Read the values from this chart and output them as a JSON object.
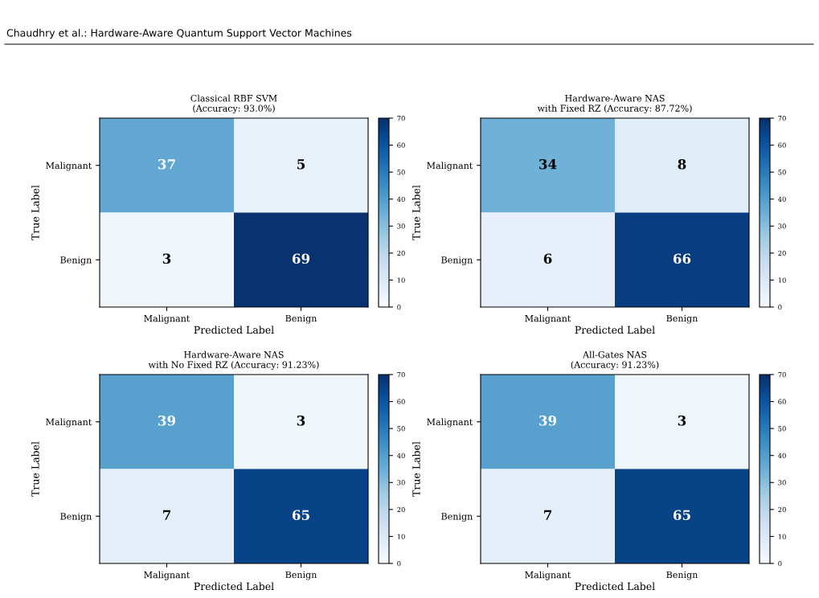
{
  "chart_data": [
    {
      "type": "heatmap",
      "title": "Classical RBF SVM\n(Accuracy: 93.0%)",
      "xlabel": "Predicted Label",
      "ylabel": "True Label",
      "categories": [
        "Malignant",
        "Benign"
      ],
      "y_categories": [
        "Malignant",
        "Benign"
      ],
      "cells": [
        [
          37,
          5
        ],
        [
          3,
          69
        ]
      ],
      "data_labels": true,
      "clim": [
        0,
        70
      ],
      "cticks": [
        0,
        10,
        20,
        30,
        40,
        50,
        60,
        70
      ],
      "annotations": [
        "Chaudhry et al.: Hardware-Aware Quantum Support Vector Machines"
      ]
    },
    {
      "type": "heatmap",
      "title": "Hardware-Aware NAS\nwith Fixed RZ (Accuracy: 87.72%)",
      "xlabel": "Predicted Label",
      "ylabel": "True Label",
      "categories": [
        "Malignant",
        "Benign"
      ],
      "y_categories": [
        "Malignant",
        "Benign"
      ],
      "cells": [
        [
          34,
          8
        ],
        [
          6,
          66
        ]
      ],
      "data_labels": true,
      "clim": [
        0,
        70
      ],
      "cticks": [
        0,
        10,
        20,
        30,
        40,
        50,
        60,
        70
      ]
    },
    {
      "type": "heatmap",
      "title": "Hardware-Aware NAS\nwith No Fixed RZ (Accuracy: 91.23%)",
      "xlabel": "Predicted Label",
      "ylabel": "True Label",
      "categories": [
        "Malignant",
        "Benign"
      ],
      "y_categories": [
        "Malignant",
        "Benign"
      ],
      "cells": [
        [
          39,
          3
        ],
        [
          7,
          65
        ]
      ],
      "data_labels": true,
      "clim": [
        0,
        70
      ],
      "cticks": [
        0,
        10,
        20,
        30,
        40,
        50,
        60,
        70
      ]
    },
    {
      "type": "heatmap",
      "title": "All-Gates NAS\n(Accuracy: 91.23%)",
      "xlabel": "Predicted Label",
      "ylabel": "True Label",
      "categories": [
        "Malignant",
        "Benign"
      ],
      "y_categories": [
        "Malignant",
        "Benign"
      ],
      "cells": [
        [
          39,
          3
        ],
        [
          7,
          65
        ]
      ],
      "data_labels": true,
      "clim": [
        0,
        70
      ],
      "cticks": [
        0,
        10,
        20,
        30,
        40,
        50,
        60,
        70
      ]
    }
  ]
}
